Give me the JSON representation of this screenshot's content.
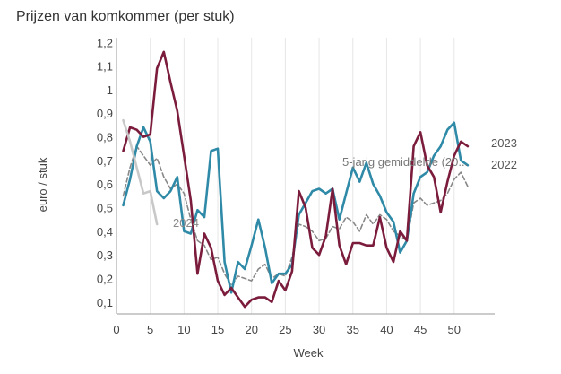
{
  "chart_data": {
    "type": "line",
    "title": "Prijzen van komkommer (per stuk)",
    "xlabel": "Week",
    "ylabel": "euro / stuk",
    "xlim": [
      0,
      56
    ],
    "ylim": [
      0.05,
      1.22
    ],
    "xticks": [
      0,
      5,
      10,
      15,
      20,
      25,
      30,
      35,
      40,
      45,
      50
    ],
    "yticks": [
      0.1,
      0.2,
      0.3,
      0.4,
      0.5,
      0.6,
      0.7,
      0.8,
      0.9,
      1.0,
      1.1,
      1.2
    ],
    "ytick_labels": [
      "0,1",
      "0,2",
      "0,3",
      "0,4",
      "0,5",
      "0,6",
      "0,7",
      "0,8",
      "0,9",
      "1",
      "1,1",
      "1,2"
    ],
    "grid": "vertical",
    "series": [
      {
        "name": "5-jarig gemiddelde (20...",
        "color": "#888888",
        "dash": true,
        "x": [
          1,
          2,
          3,
          4,
          5,
          6,
          7,
          8,
          9,
          10,
          11,
          12,
          13,
          14,
          15,
          16,
          17,
          18,
          19,
          20,
          21,
          22,
          23,
          24,
          25,
          26,
          27,
          28,
          29,
          30,
          31,
          32,
          33,
          34,
          35,
          36,
          37,
          38,
          39,
          40,
          41,
          42,
          43,
          44,
          45,
          46,
          47,
          48,
          49,
          50,
          51,
          52
        ],
        "y": [
          0.55,
          0.67,
          0.76,
          0.72,
          0.68,
          0.71,
          0.63,
          0.58,
          0.6,
          0.56,
          0.45,
          0.36,
          0.34,
          0.28,
          0.29,
          0.22,
          0.17,
          0.21,
          0.2,
          0.19,
          0.24,
          0.26,
          0.2,
          0.22,
          0.21,
          0.29,
          0.43,
          0.42,
          0.4,
          0.36,
          0.37,
          0.42,
          0.41,
          0.46,
          0.44,
          0.4,
          0.47,
          0.43,
          0.47,
          0.45,
          0.4,
          0.38,
          0.36,
          0.52,
          0.54,
          0.51,
          0.52,
          0.53,
          0.56,
          0.62,
          0.65,
          0.59
        ]
      },
      {
        "name": "2022",
        "color": "#2f8aa8",
        "dash": false,
        "x": [
          1,
          2,
          3,
          4,
          5,
          6,
          7,
          8,
          9,
          10,
          11,
          12,
          13,
          14,
          15,
          16,
          17,
          18,
          19,
          20,
          21,
          22,
          23,
          24,
          25,
          26,
          27,
          28,
          29,
          30,
          31,
          32,
          33,
          34,
          35,
          36,
          37,
          38,
          39,
          40,
          41,
          42,
          43,
          44,
          45,
          46,
          47,
          48,
          49,
          50,
          51,
          52
        ],
        "y": [
          0.51,
          0.62,
          0.76,
          0.84,
          0.78,
          0.57,
          0.54,
          0.57,
          0.63,
          0.4,
          0.39,
          0.49,
          0.46,
          0.74,
          0.75,
          0.27,
          0.14,
          0.27,
          0.24,
          0.34,
          0.45,
          0.33,
          0.18,
          0.22,
          0.22,
          0.26,
          0.47,
          0.52,
          0.57,
          0.58,
          0.56,
          0.58,
          0.45,
          0.56,
          0.67,
          0.61,
          0.69,
          0.6,
          0.55,
          0.48,
          0.44,
          0.31,
          0.36,
          0.56,
          0.63,
          0.65,
          0.72,
          0.76,
          0.83,
          0.86,
          0.7,
          0.68
        ]
      },
      {
        "name": "2023",
        "color": "#7b1c3c",
        "dash": false,
        "x": [
          1,
          2,
          3,
          4,
          5,
          6,
          7,
          8,
          9,
          10,
          11,
          12,
          13,
          14,
          15,
          16,
          17,
          18,
          19,
          20,
          21,
          22,
          23,
          24,
          25,
          26,
          27,
          28,
          29,
          30,
          31,
          32,
          33,
          34,
          35,
          36,
          37,
          38,
          39,
          40,
          41,
          42,
          43,
          44,
          45,
          46,
          47,
          48,
          49,
          50,
          51,
          52
        ],
        "y": [
          0.74,
          0.84,
          0.83,
          0.8,
          0.81,
          1.09,
          1.16,
          1.03,
          0.91,
          0.72,
          0.53,
          0.22,
          0.39,
          0.33,
          0.19,
          0.13,
          0.16,
          0.12,
          0.08,
          0.11,
          0.12,
          0.12,
          0.1,
          0.19,
          0.15,
          0.23,
          0.57,
          0.5,
          0.33,
          0.3,
          0.38,
          0.58,
          0.34,
          0.26,
          0.35,
          0.35,
          0.34,
          0.34,
          0.46,
          0.33,
          0.27,
          0.4,
          0.36,
          0.76,
          0.82,
          0.68,
          0.63,
          0.48,
          0.61,
          0.72,
          0.78,
          0.76
        ]
      },
      {
        "name": "2024",
        "color": "#c8c8c8",
        "dash": false,
        "x": [
          1,
          2,
          3,
          4,
          5,
          6
        ],
        "y": [
          0.87,
          0.78,
          0.67,
          0.56,
          0.57,
          0.43
        ]
      }
    ]
  }
}
